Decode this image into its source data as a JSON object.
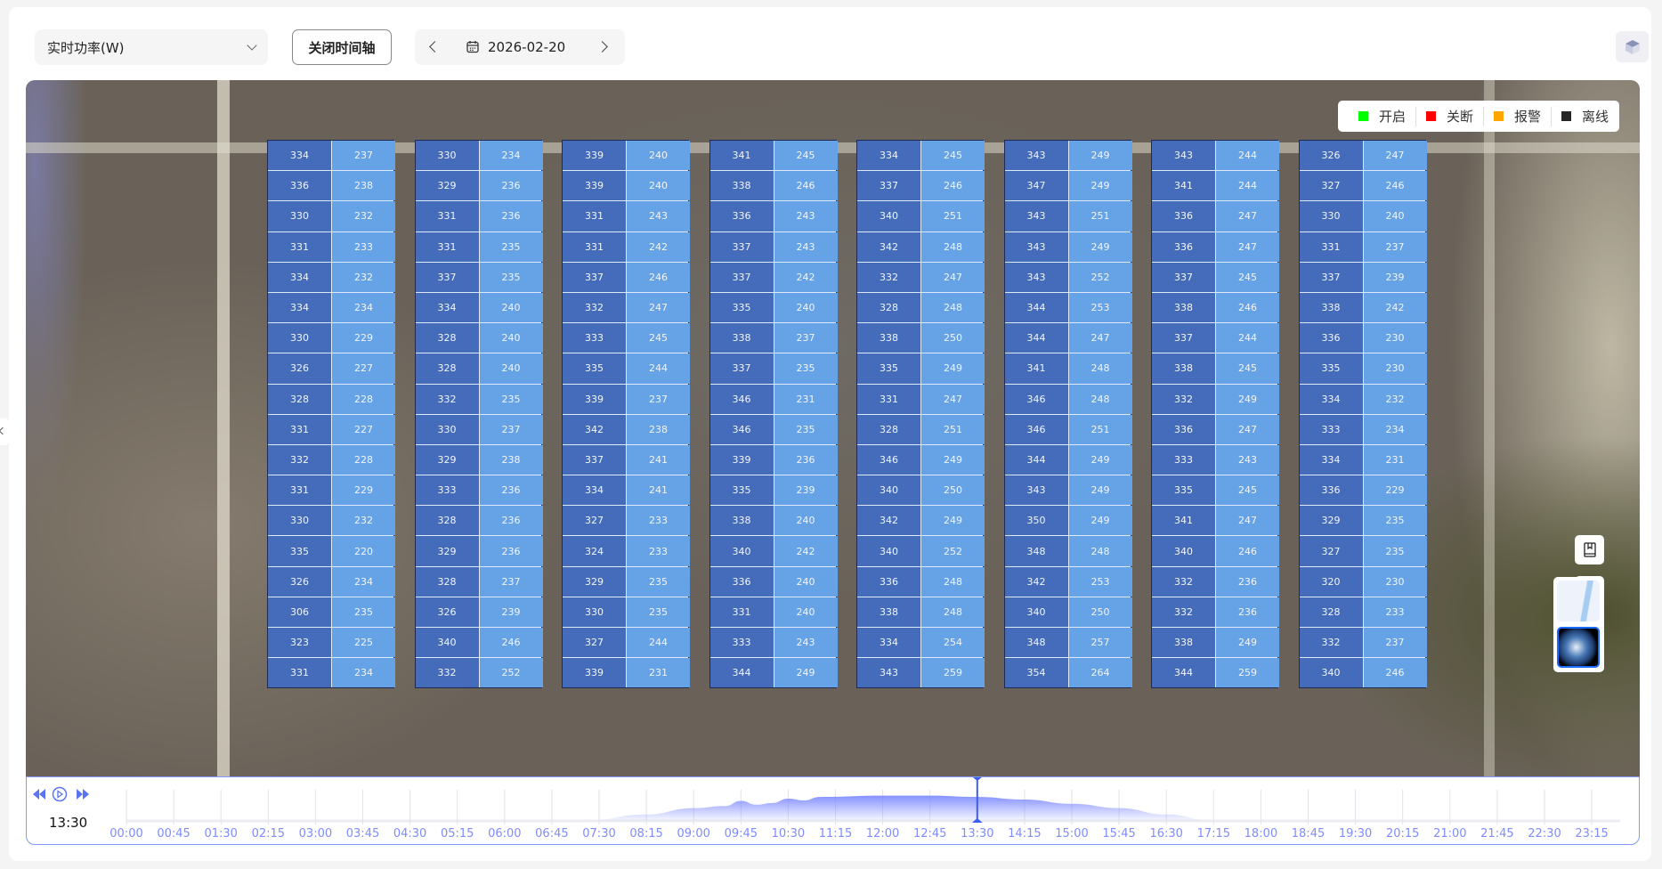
{
  "toolbar": {
    "metric_select": "实时功率(W)",
    "timeline_toggle_label": "关闭时间轴",
    "date": "2026-02-20",
    "icons": {
      "calendar": "calendar-icon",
      "prev": "chevron-left-icon",
      "next": "chevron-right-icon",
      "view3d": "cube-icon"
    }
  },
  "legend": [
    {
      "label": "开启",
      "color": "#00ff00"
    },
    {
      "label": "关断",
      "color": "#ff0000"
    },
    {
      "label": "报警",
      "color": "#ffa500"
    },
    {
      "label": "离线",
      "color": "#262626"
    }
  ],
  "panel_colors": {
    "left": "#456cba",
    "right": "#66a2e6"
  },
  "panel_groups": [
    {
      "left": [
        334,
        336,
        330,
        331,
        334,
        334,
        330,
        326,
        328,
        331,
        332,
        331,
        330,
        335,
        326,
        306,
        323,
        331
      ],
      "right": [
        237,
        238,
        232,
        233,
        232,
        234,
        229,
        227,
        228,
        227,
        228,
        229,
        232,
        220,
        234,
        235,
        225,
        234
      ]
    },
    {
      "left": [
        330,
        329,
        331,
        331,
        337,
        334,
        328,
        328,
        332,
        330,
        329,
        333,
        328,
        329,
        328,
        326,
        340,
        332
      ],
      "right": [
        234,
        236,
        236,
        235,
        235,
        240,
        240,
        240,
        235,
        237,
        238,
        236,
        236,
        236,
        237,
        239,
        246,
        252
      ]
    },
    {
      "left": [
        339,
        339,
        331,
        331,
        337,
        332,
        333,
        335,
        339,
        342,
        337,
        334,
        327,
        324,
        329,
        330,
        327,
        339
      ],
      "right": [
        240,
        240,
        243,
        242,
        246,
        247,
        245,
        244,
        237,
        238,
        241,
        241,
        233,
        233,
        235,
        235,
        244,
        231
      ]
    },
    {
      "left": [
        341,
        338,
        336,
        337,
        337,
        335,
        338,
        337,
        346,
        346,
        339,
        335,
        338,
        340,
        336,
        331,
        333,
        344
      ],
      "right": [
        245,
        246,
        243,
        243,
        242,
        240,
        237,
        235,
        231,
        235,
        236,
        239,
        240,
        242,
        240,
        240,
        243,
        249
      ]
    },
    {
      "left": [
        334,
        337,
        340,
        342,
        332,
        328,
        338,
        335,
        331,
        328,
        346,
        340,
        342,
        340,
        336,
        338,
        334,
        343
      ],
      "right": [
        245,
        246,
        251,
        248,
        247,
        248,
        250,
        249,
        247,
        251,
        249,
        250,
        249,
        252,
        248,
        248,
        254,
        259
      ]
    },
    {
      "left": [
        343,
        347,
        343,
        343,
        343,
        344,
        344,
        341,
        346,
        346,
        344,
        343,
        350,
        348,
        342,
        340,
        348,
        354
      ],
      "right": [
        249,
        249,
        251,
        249,
        252,
        253,
        247,
        248,
        248,
        251,
        249,
        249,
        249,
        248,
        253,
        250,
        257,
        264
      ]
    },
    {
      "left": [
        343,
        341,
        336,
        336,
        337,
        338,
        337,
        338,
        332,
        336,
        333,
        335,
        341,
        340,
        332,
        332,
        338,
        344
      ],
      "right": [
        244,
        244,
        247,
        247,
        245,
        246,
        244,
        245,
        249,
        247,
        243,
        245,
        247,
        246,
        236,
        236,
        249,
        259
      ]
    },
    {
      "left": [
        326,
        327,
        330,
        331,
        337,
        338,
        336,
        335,
        334,
        333,
        334,
        336,
        329,
        327,
        320,
        328,
        332,
        340
      ],
      "right": [
        247,
        246,
        240,
        237,
        239,
        242,
        230,
        230,
        232,
        234,
        231,
        229,
        235,
        235,
        230,
        233,
        237,
        246
      ]
    }
  ],
  "map_controls": [
    "bookmark-icon",
    "locate-crosshair-icon",
    "compass-icon"
  ],
  "map_layers": [
    {
      "name": "street-map",
      "selected": false
    },
    {
      "name": "satellite",
      "selected": true
    }
  ],
  "timeline": {
    "current_time": "13:30",
    "controls": [
      "rewind-icon",
      "play-icon",
      "fast-forward-icon"
    ],
    "ticks": [
      "00:00",
      "00:45",
      "01:30",
      "02:15",
      "03:00",
      "03:45",
      "04:30",
      "05:15",
      "06:00",
      "06:45",
      "07:30",
      "08:15",
      "09:00",
      "09:45",
      "10:30",
      "11:15",
      "12:00",
      "12:45",
      "13:30",
      "14:15",
      "15:00",
      "15:45",
      "16:30",
      "17:15",
      "18:00",
      "18:45",
      "19:30",
      "20:15",
      "21:00",
      "21:45",
      "22:30",
      "23:15"
    ]
  },
  "chart_data": {
    "type": "area",
    "x": [
      "07:15",
      "08:15",
      "09:00",
      "09:30",
      "09:45",
      "10:00",
      "10:15",
      "10:30",
      "10:45",
      "11:00",
      "12:00",
      "12:45",
      "13:30",
      "14:15",
      "15:00",
      "15:45",
      "16:30",
      "17:15"
    ],
    "values": [
      0,
      0.15,
      0.3,
      0.35,
      0.47,
      0.38,
      0.42,
      0.52,
      0.48,
      0.56,
      0.59,
      0.59,
      0.56,
      0.5,
      0.4,
      0.3,
      0.15,
      0
    ],
    "cursor": "13:30",
    "color": "#7f8cff"
  }
}
